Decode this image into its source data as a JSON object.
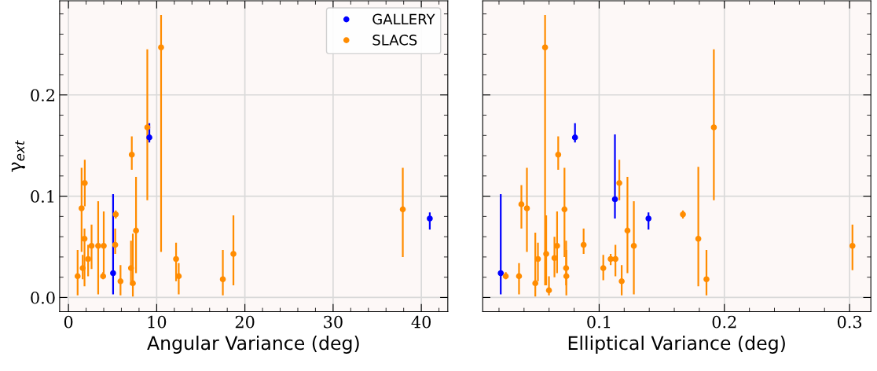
{
  "chart_data": [
    {
      "type": "scatter",
      "xlabel": "Angular Variance (deg)",
      "ylabel": "γ$_{ext}$",
      "xlim": [
        -1,
        43
      ],
      "ylim": [
        -0.014,
        0.293
      ],
      "xticks": [
        0,
        10,
        20,
        30,
        40
      ],
      "yticks": [
        {
          "value": 0,
          "label": "0.0"
        },
        {
          "value": 0.1,
          "label": "0.1"
        },
        {
          "value": 0.2,
          "label": "0.2"
        }
      ],
      "grid": true,
      "legend": "top right",
      "marker": "circle",
      "series": [
        {
          "name": "GALLERY",
          "color": "#0000ff",
          "x": [
            5.06,
            9.17,
            40.96
          ],
          "values": [
            0.024,
            0.158,
            0.078
          ],
          "errors": [
            [
              0.003,
              0.102
            ],
            [
              0.153,
              0.172
            ],
            [
              0.067,
              0.084
            ]
          ]
        },
        {
          "name": "SLACS",
          "color": "#ff8c00",
          "x": [
            1.04,
            1.49,
            1.61,
            1.82,
            1.85,
            2.23,
            2.62,
            3.37,
            3.93,
            4.0,
            5.36,
            5.3,
            5.9,
            7.09,
            7.18,
            7.3,
            7.66,
            8.94,
            10.5,
            12.2,
            12.5,
            17.5,
            18.7,
            37.9
          ],
          "values": [
            0.021,
            0.088,
            0.029,
            0.058,
            0.113,
            0.038,
            0.051,
            0.051,
            0.021,
            0.051,
            0.082,
            0.052,
            0.016,
            0.029,
            0.141,
            0.014,
            0.066,
            0.168,
            0.247,
            0.038,
            0.021,
            0.018,
            0.043,
            0.087
          ],
          "errors": [
            [
              0.002,
              0.047
            ],
            [
              0.045,
              0.128
            ],
            [
              0.018,
              0.042
            ],
            [
              0.011,
              0.068
            ],
            [
              0.09,
              0.136
            ],
            [
              0.021,
              0.052
            ],
            [
              0.028,
              0.072
            ],
            [
              0.003,
              0.095
            ],
            [
              0.018,
              0.025
            ],
            [
              0.024,
              0.085
            ],
            [
              0.078,
              0.086
            ],
            [
              0.043,
              0.068
            ],
            [
              0.002,
              0.032
            ],
            [
              0.012,
              0.056
            ],
            [
              0.126,
              0.159
            ],
            [
              0.001,
              0.063
            ],
            [
              0.024,
              0.119
            ],
            [
              0.096,
              0.245
            ],
            [
              0.045,
              0.279
            ],
            [
              0.016,
              0.054
            ],
            [
              0.003,
              0.034
            ],
            [
              0.002,
              0.047
            ],
            [
              0.012,
              0.081
            ],
            [
              0.04,
              0.128
            ]
          ]
        }
      ]
    },
    {
      "type": "scatter",
      "xlabel": "Elliptical Variance (deg)",
      "xlim": [
        0.007,
        0.317
      ],
      "ylim": [
        -0.014,
        0.293
      ],
      "xticks": [
        0.1,
        0.2,
        0.3
      ],
      "yticks": [
        {
          "value": 0,
          "label": null
        },
        {
          "value": 0.1,
          "label": null
        },
        {
          "value": 0.2,
          "label": null
        }
      ],
      "tick_labels": "x",
      "grid": true,
      "marker": "circle",
      "series": [
        {
          "color": "#0000ff",
          "x": [
            0.0214,
            0.0807,
            0.1126,
            0.1394
          ],
          "values": [
            0.024,
            0.158,
            0.097,
            0.078
          ],
          "errors": [
            [
              0.003,
              0.102
            ],
            [
              0.153,
              0.172
            ],
            [
              0.078,
              0.161
            ],
            [
              0.067,
              0.084
            ]
          ]
        },
        {
          "color": "#ff8c00",
          "x": [
            0.0254,
            0.036,
            0.0379,
            0.0423,
            0.049,
            0.0511,
            0.0568,
            0.0577,
            0.0599,
            0.0643,
            0.0664,
            0.0673,
            0.0723,
            0.0736,
            0.0738,
            0.0876,
            0.1033,
            0.1092,
            0.113,
            0.1161,
            0.118,
            0.1226,
            0.1277,
            0.1669,
            0.1792,
            0.1857,
            0.1916,
            0.3023
          ],
          "values": [
            0.021,
            0.021,
            0.092,
            0.088,
            0.014,
            0.038,
            0.247,
            0.043,
            0.007,
            0.039,
            0.051,
            0.141,
            0.087,
            0.029,
            0.021,
            0.052,
            0.029,
            0.038,
            0.038,
            0.113,
            0.016,
            0.066,
            0.051,
            0.082,
            0.058,
            0.018,
            0.168,
            0.051
          ],
          "errors": [
            [
              0.018,
              0.025
            ],
            [
              0.003,
              0.034
            ],
            [
              0.068,
              0.111
            ],
            [
              0.045,
              0.128
            ],
            [
              0.001,
              0.064
            ],
            [
              0.016,
              0.054
            ],
            [
              0.012,
              0.279
            ],
            [
              0.012,
              0.081
            ],
            [
              0.002,
              0.021
            ],
            [
              0.02,
              0.06
            ],
            [
              0.024,
              0.085
            ],
            [
              0.126,
              0.159
            ],
            [
              0.04,
              0.128
            ],
            [
              0.012,
              0.056
            ],
            [
              0.002,
              0.047
            ],
            [
              0.043,
              0.068
            ],
            [
              0.017,
              0.042
            ],
            [
              0.032,
              0.043
            ],
            [
              0.021,
              0.052
            ],
            [
              0.096,
              0.136
            ],
            [
              0.002,
              0.032
            ],
            [
              0.024,
              0.119
            ],
            [
              0.003,
              0.095
            ],
            [
              0.078,
              0.086
            ],
            [
              0.011,
              0.129
            ],
            [
              0.002,
              0.047
            ],
            [
              0.096,
              0.245
            ],
            [
              0.027,
              0.072
            ]
          ]
        }
      ]
    }
  ]
}
